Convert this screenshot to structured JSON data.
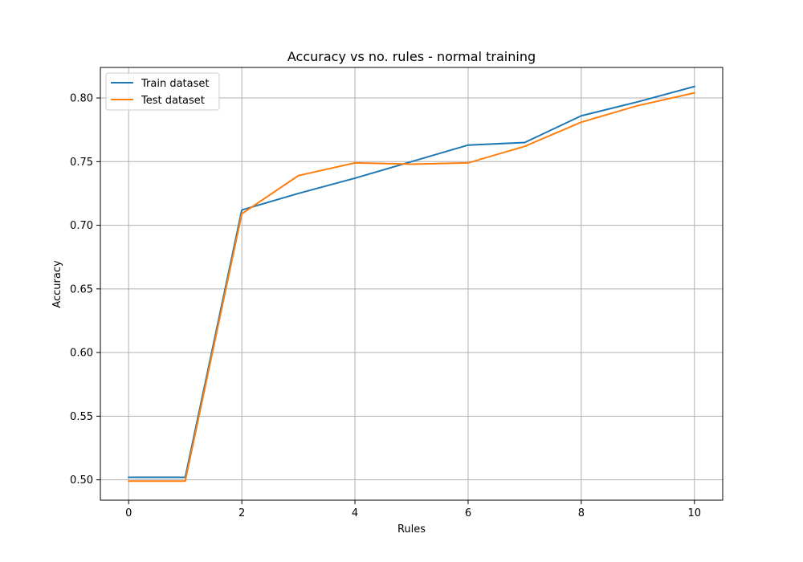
{
  "chart_data": {
    "type": "line",
    "title": "Accuracy vs no. rules - normal training",
    "xlabel": "Rules",
    "ylabel": "Accuracy",
    "xlim": [
      -0.5,
      10.5
    ],
    "ylim": [
      0.484,
      0.824
    ],
    "xticks": [
      0,
      2,
      4,
      6,
      8,
      10
    ],
    "yticks": [
      0.5,
      0.55,
      0.6,
      0.65,
      0.7,
      0.75,
      0.8
    ],
    "ytick_labels": [
      "0.50",
      "0.55",
      "0.60",
      "0.65",
      "0.70",
      "0.75",
      "0.80"
    ],
    "grid": true,
    "legend_position": "top-left",
    "x": [
      0,
      1,
      2,
      3,
      4,
      5,
      6,
      7,
      8,
      9,
      10
    ],
    "series": [
      {
        "name": "Train dataset",
        "color": "#1f77b4",
        "values": [
          0.502,
          0.502,
          0.712,
          0.725,
          0.737,
          0.75,
          0.763,
          0.765,
          0.786,
          0.797,
          0.809
        ]
      },
      {
        "name": "Test dataset",
        "color": "#ff7f0e",
        "values": [
          0.499,
          0.499,
          0.709,
          0.739,
          0.749,
          0.748,
          0.749,
          0.762,
          0.781,
          0.794,
          0.804
        ]
      }
    ]
  }
}
